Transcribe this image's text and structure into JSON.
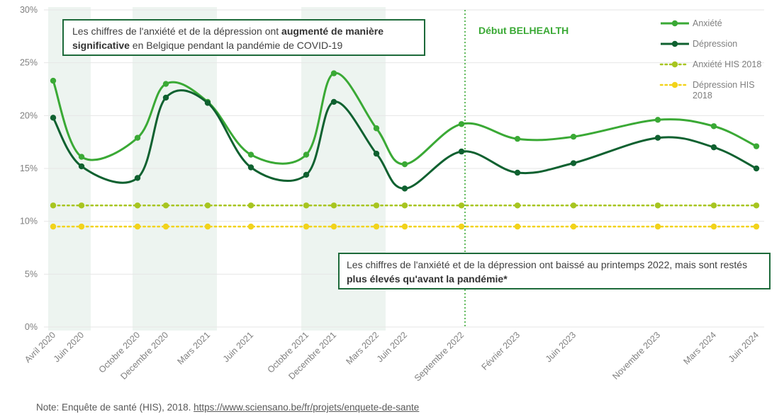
{
  "chart_data": {
    "type": "line",
    "categories": [
      "Avril 2020",
      "Juin 2020",
      "Octobre 2020",
      "Decembre 2020",
      "Mars 2021",
      "Juin 2021",
      "Octobre 2021",
      "Decembre 2021",
      "Mars 2022",
      "Juin 2022",
      "Septembre 2022",
      "Février 2023",
      "Juin 2023",
      "Novembre 2023",
      "Mars 2024",
      "Juin 2024"
    ],
    "series": [
      {
        "name": "Anxiété",
        "values": [
          23.3,
          16.1,
          17.9,
          23.0,
          21.3,
          16.3,
          16.3,
          24.0,
          18.8,
          15.4,
          19.2,
          17.8,
          18.0,
          19.6,
          19.0,
          17.1
        ],
        "color": "#3aa935",
        "style": "solid"
      },
      {
        "name": "Dépression",
        "values": [
          19.8,
          15.2,
          14.1,
          21.7,
          21.2,
          15.1,
          14.4,
          21.3,
          16.4,
          13.1,
          16.6,
          14.6,
          15.5,
          17.9,
          17.0,
          15.0
        ],
        "color": "#0f6130",
        "style": "solid"
      },
      {
        "name": "Anxiété HIS 2018",
        "values": [
          11.5,
          11.5,
          11.5,
          11.5,
          11.5,
          11.5,
          11.5,
          11.5,
          11.5,
          11.5,
          11.5,
          11.5,
          11.5,
          11.5,
          11.5,
          11.5
        ],
        "color": "#a7c520",
        "style": "dotted"
      },
      {
        "name": "Dépression HIS 2018",
        "values": [
          9.5,
          9.5,
          9.5,
          9.5,
          9.5,
          9.5,
          9.5,
          9.5,
          9.5,
          9.5,
          9.5,
          9.5,
          9.5,
          9.5,
          9.5,
          9.5
        ],
        "color": "#f2d31b",
        "style": "dotted"
      }
    ],
    "ylim": [
      0,
      30
    ],
    "ytick_labels": [
      "0%",
      "5%",
      "10%",
      "15%",
      "20%",
      "25%",
      "30%"
    ],
    "grid": "horizontal",
    "legend_position": "top-right",
    "shaded_periods": [
      [
        "Avril 2020",
        "Juin 2020"
      ],
      [
        "Octobre 2020",
        "Mars 2021"
      ],
      [
        "Octobre 2021",
        "Mars 2022"
      ]
    ],
    "vertical_marker": {
      "category": "Septembre 2022",
      "label": "Début BELHEALTH"
    },
    "annotations": [
      {
        "parts": [
          "Les chiffres de l'anxiété et de la dépression ont ",
          "augmenté de manière significative",
          " en Belgique pendant la pandémie de COVID-19"
        ]
      },
      {
        "parts": [
          "Les chiffres de l'anxiété et de la dépression ont baissé au printemps 2022, mais sont restés ",
          "plus élevés qu'avant la pandémie*",
          ""
        ]
      }
    ]
  },
  "colors": {
    "shade": "#edf4f0",
    "marker_line": "#3aa935",
    "box_border": "#1d6a3a",
    "grid": "#e6e6e6"
  },
  "note": {
    "prefix": "Note: Enquête de santé (HIS), 2018. ",
    "link": "https://www.sciensano.be/fr/projets/enquete-de-sante"
  }
}
